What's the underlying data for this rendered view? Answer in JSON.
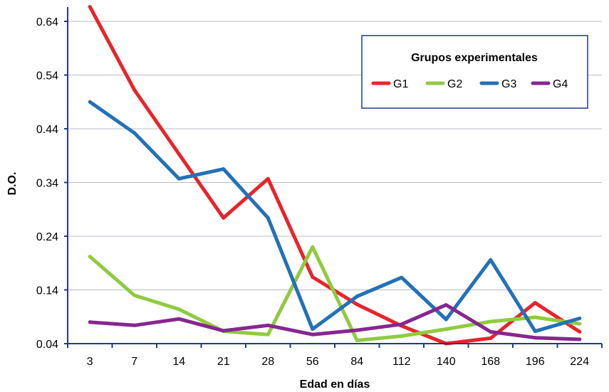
{
  "chart_data": {
    "type": "line",
    "title": "",
    "xlabel": "Edad en días",
    "ylabel": "D.O.",
    "categories": [
      "3",
      "7",
      "14",
      "21",
      "28",
      "56",
      "84",
      "112",
      "140",
      "168",
      "196",
      "224"
    ],
    "yticks": [
      "0.04",
      "0.14",
      "0.24",
      "0.34",
      "0.44",
      "0.54",
      "0.64"
    ],
    "ylim": [
      0.04,
      0.66
    ],
    "grid": true,
    "legend": {
      "title": "Grupos experimentales",
      "position": "top-right"
    },
    "series": [
      {
        "name": "G1",
        "color": "#e8242b",
        "values": [
          0.667,
          0.512,
          0.393,
          0.274,
          0.347,
          0.164,
          0.113,
          0.073,
          0.04,
          0.05,
          0.116,
          0.062
        ]
      },
      {
        "name": "G2",
        "color": "#8fcb3f",
        "values": [
          0.202,
          0.13,
          0.104,
          0.063,
          0.057,
          0.22,
          0.046,
          0.054,
          0.067,
          0.081,
          0.089,
          0.077
        ]
      },
      {
        "name": "G3",
        "color": "#2271b8",
        "values": [
          0.49,
          0.432,
          0.347,
          0.365,
          0.274,
          0.067,
          0.128,
          0.163,
          0.085,
          0.196,
          0.063,
          0.087
        ]
      },
      {
        "name": "G4",
        "color": "#87268f",
        "values": [
          0.08,
          0.074,
          0.086,
          0.064,
          0.074,
          0.057,
          0.065,
          0.076,
          0.112,
          0.062,
          0.051,
          0.048
        ]
      }
    ]
  }
}
